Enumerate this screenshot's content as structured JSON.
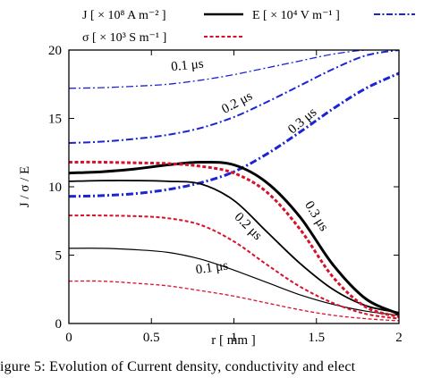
{
  "caption": "igure 5: Evolution of Current density, conductivity and elect",
  "chart_data": {
    "type": "line",
    "xlabel": "r [ mm ]",
    "ylabel": "J / σ / E",
    "xlim": [
      0,
      2
    ],
    "ylim": [
      0,
      20
    ],
    "xticks": [
      "0",
      "0.5",
      "1",
      "1.5",
      "2"
    ],
    "yticks": [
      "0",
      "5",
      "10",
      "15",
      "20"
    ],
    "x_tick_values": [
      0,
      0.5,
      1,
      1.5,
      2
    ],
    "y_tick_values": [
      0,
      5,
      10,
      15,
      20
    ],
    "grid": false,
    "legend_position": "top",
    "legend": [
      {
        "id": "J",
        "label": "J [ × 10⁸ A m⁻² ]",
        "color": "#000000",
        "style": "solid"
      },
      {
        "id": "sigma",
        "label": "σ [ × 10³ S m⁻¹ ]",
        "color": "#d9102a",
        "style": "dashed"
      },
      {
        "id": "E",
        "label": "E [ × 10⁴ V m⁻¹ ]",
        "color": "#1a24d6",
        "style": "dashdot"
      }
    ],
    "series": [
      {
        "id": "E-0.1",
        "group": "E",
        "time": "0.1 μs",
        "weight": 1,
        "x": [
          0,
          0.2,
          0.4,
          0.6,
          0.8,
          1.0,
          1.2,
          1.4,
          1.6,
          1.8,
          2.0
        ],
        "y": [
          17.2,
          17.25,
          17.35,
          17.5,
          17.8,
          18.2,
          18.7,
          19.2,
          19.7,
          20.0,
          20.0
        ]
      },
      {
        "id": "E-0.2",
        "group": "E",
        "time": "0.2 μs",
        "weight": 2,
        "x": [
          0,
          0.2,
          0.4,
          0.6,
          0.8,
          1.0,
          1.2,
          1.4,
          1.6,
          1.8,
          2.0
        ],
        "y": [
          13.2,
          13.3,
          13.5,
          13.8,
          14.3,
          15.1,
          16.2,
          17.4,
          18.6,
          19.6,
          20.0
        ]
      },
      {
        "id": "E-0.3",
        "group": "E",
        "time": "0.3 μs",
        "weight": 3,
        "x": [
          0,
          0.2,
          0.4,
          0.6,
          0.8,
          1.0,
          1.2,
          1.4,
          1.6,
          1.8,
          2.0
        ],
        "y": [
          9.3,
          9.35,
          9.5,
          9.8,
          10.3,
          11.1,
          12.4,
          14.0,
          15.7,
          17.2,
          18.3
        ]
      },
      {
        "id": "J-0.1",
        "group": "J",
        "time": "0.1 μs",
        "weight": 1,
        "x": [
          0,
          0.2,
          0.4,
          0.6,
          0.8,
          1.0,
          1.2,
          1.4,
          1.6,
          1.8,
          2.0
        ],
        "y": [
          5.5,
          5.5,
          5.4,
          5.2,
          4.7,
          3.9,
          3.0,
          2.1,
          1.4,
          0.9,
          0.6
        ]
      },
      {
        "id": "J-0.2",
        "group": "J",
        "time": "0.2 μs",
        "weight": 2,
        "x": [
          0,
          0.2,
          0.4,
          0.6,
          0.8,
          1.0,
          1.2,
          1.4,
          1.6,
          1.8,
          2.0
        ],
        "y": [
          10.4,
          10.45,
          10.45,
          10.4,
          10.2,
          9.0,
          6.7,
          4.4,
          2.5,
          1.3,
          0.8
        ]
      },
      {
        "id": "J-0.3",
        "group": "J",
        "time": "0.3 μs",
        "weight": 3,
        "x": [
          0,
          0.2,
          0.4,
          0.6,
          0.8,
          1.0,
          1.2,
          1.4,
          1.6,
          1.8,
          2.0
        ],
        "y": [
          11.0,
          11.1,
          11.3,
          11.6,
          11.8,
          11.6,
          10.3,
          7.8,
          4.3,
          1.8,
          0.7
        ]
      },
      {
        "id": "sigma-0.1",
        "group": "sigma",
        "time": "0.1 μs",
        "weight": 1,
        "x": [
          0,
          0.2,
          0.4,
          0.6,
          0.8,
          1.0,
          1.2,
          1.4,
          1.6,
          1.8,
          2.0
        ],
        "y": [
          3.1,
          3.1,
          2.95,
          2.75,
          2.4,
          2.0,
          1.5,
          1.0,
          0.6,
          0.35,
          0.2
        ]
      },
      {
        "id": "sigma-0.2",
        "group": "sigma",
        "time": "0.2 μs",
        "weight": 2,
        "x": [
          0,
          0.2,
          0.4,
          0.6,
          0.8,
          1.0,
          1.2,
          1.4,
          1.6,
          1.8,
          2.0
        ],
        "y": [
          7.9,
          7.9,
          7.85,
          7.7,
          7.2,
          6.0,
          4.3,
          2.7,
          1.5,
          0.7,
          0.35
        ]
      },
      {
        "id": "sigma-0.3",
        "group": "sigma",
        "time": "0.3 μs",
        "weight": 3,
        "x": [
          0,
          0.2,
          0.4,
          0.6,
          0.8,
          1.0,
          1.2,
          1.4,
          1.6,
          1.8,
          2.0
        ],
        "y": [
          11.8,
          11.8,
          11.75,
          11.7,
          11.5,
          11.0,
          9.6,
          6.9,
          3.4,
          1.2,
          0.5
        ]
      }
    ],
    "annotations": [
      {
        "text": "0.1 μs",
        "x": 0.72,
        "y": 18.6,
        "rotate": -6
      },
      {
        "text": "0.2 μs",
        "x": 1.03,
        "y": 15.9,
        "rotate": -28
      },
      {
        "text": "0.3 μs",
        "x": 1.43,
        "y": 14.6,
        "rotate": -40
      },
      {
        "text": "0.3 μs",
        "x": 1.48,
        "y": 7.7,
        "rotate": 58
      },
      {
        "text": "0.2 μs",
        "x": 1.07,
        "y": 6.9,
        "rotate": 45
      },
      {
        "text": "0.1 μs",
        "x": 0.87,
        "y": 3.8,
        "rotate": -8
      }
    ]
  }
}
